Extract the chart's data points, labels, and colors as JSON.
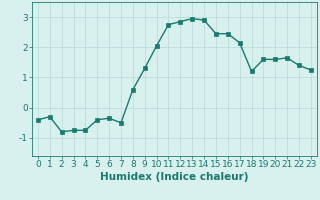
{
  "x": [
    0,
    1,
    2,
    3,
    4,
    5,
    6,
    7,
    8,
    9,
    10,
    11,
    12,
    13,
    14,
    15,
    16,
    17,
    18,
    19,
    20,
    21,
    22,
    23
  ],
  "y": [
    -0.4,
    -0.3,
    -0.8,
    -0.75,
    -0.75,
    -0.4,
    -0.35,
    -0.5,
    0.6,
    1.3,
    2.05,
    2.75,
    2.85,
    2.95,
    2.9,
    2.45,
    2.45,
    2.15,
    1.2,
    1.6,
    1.6,
    1.65,
    1.4,
    1.25
  ],
  "line_color": "#1a7a6e",
  "marker_color": "#1a7a6e",
  "bg_color": "#d8f0ee",
  "grid_color": "#b8d8d5",
  "xlabel": "Humidex (Indice chaleur)",
  "xlim": [
    -0.5,
    23.5
  ],
  "ylim": [
    -1.6,
    3.5
  ],
  "yticks": [
    -1,
    0,
    1,
    2,
    3
  ],
  "xticks": [
    0,
    1,
    2,
    3,
    4,
    5,
    6,
    7,
    8,
    9,
    10,
    11,
    12,
    13,
    14,
    15,
    16,
    17,
    18,
    19,
    20,
    21,
    22,
    23
  ],
  "tick_color": "#1a7a6e",
  "label_color": "#1a7a6e",
  "font_size": 6.5,
  "xlabel_fontsize": 7.5,
  "linewidth": 1.0,
  "markersize": 2.5
}
